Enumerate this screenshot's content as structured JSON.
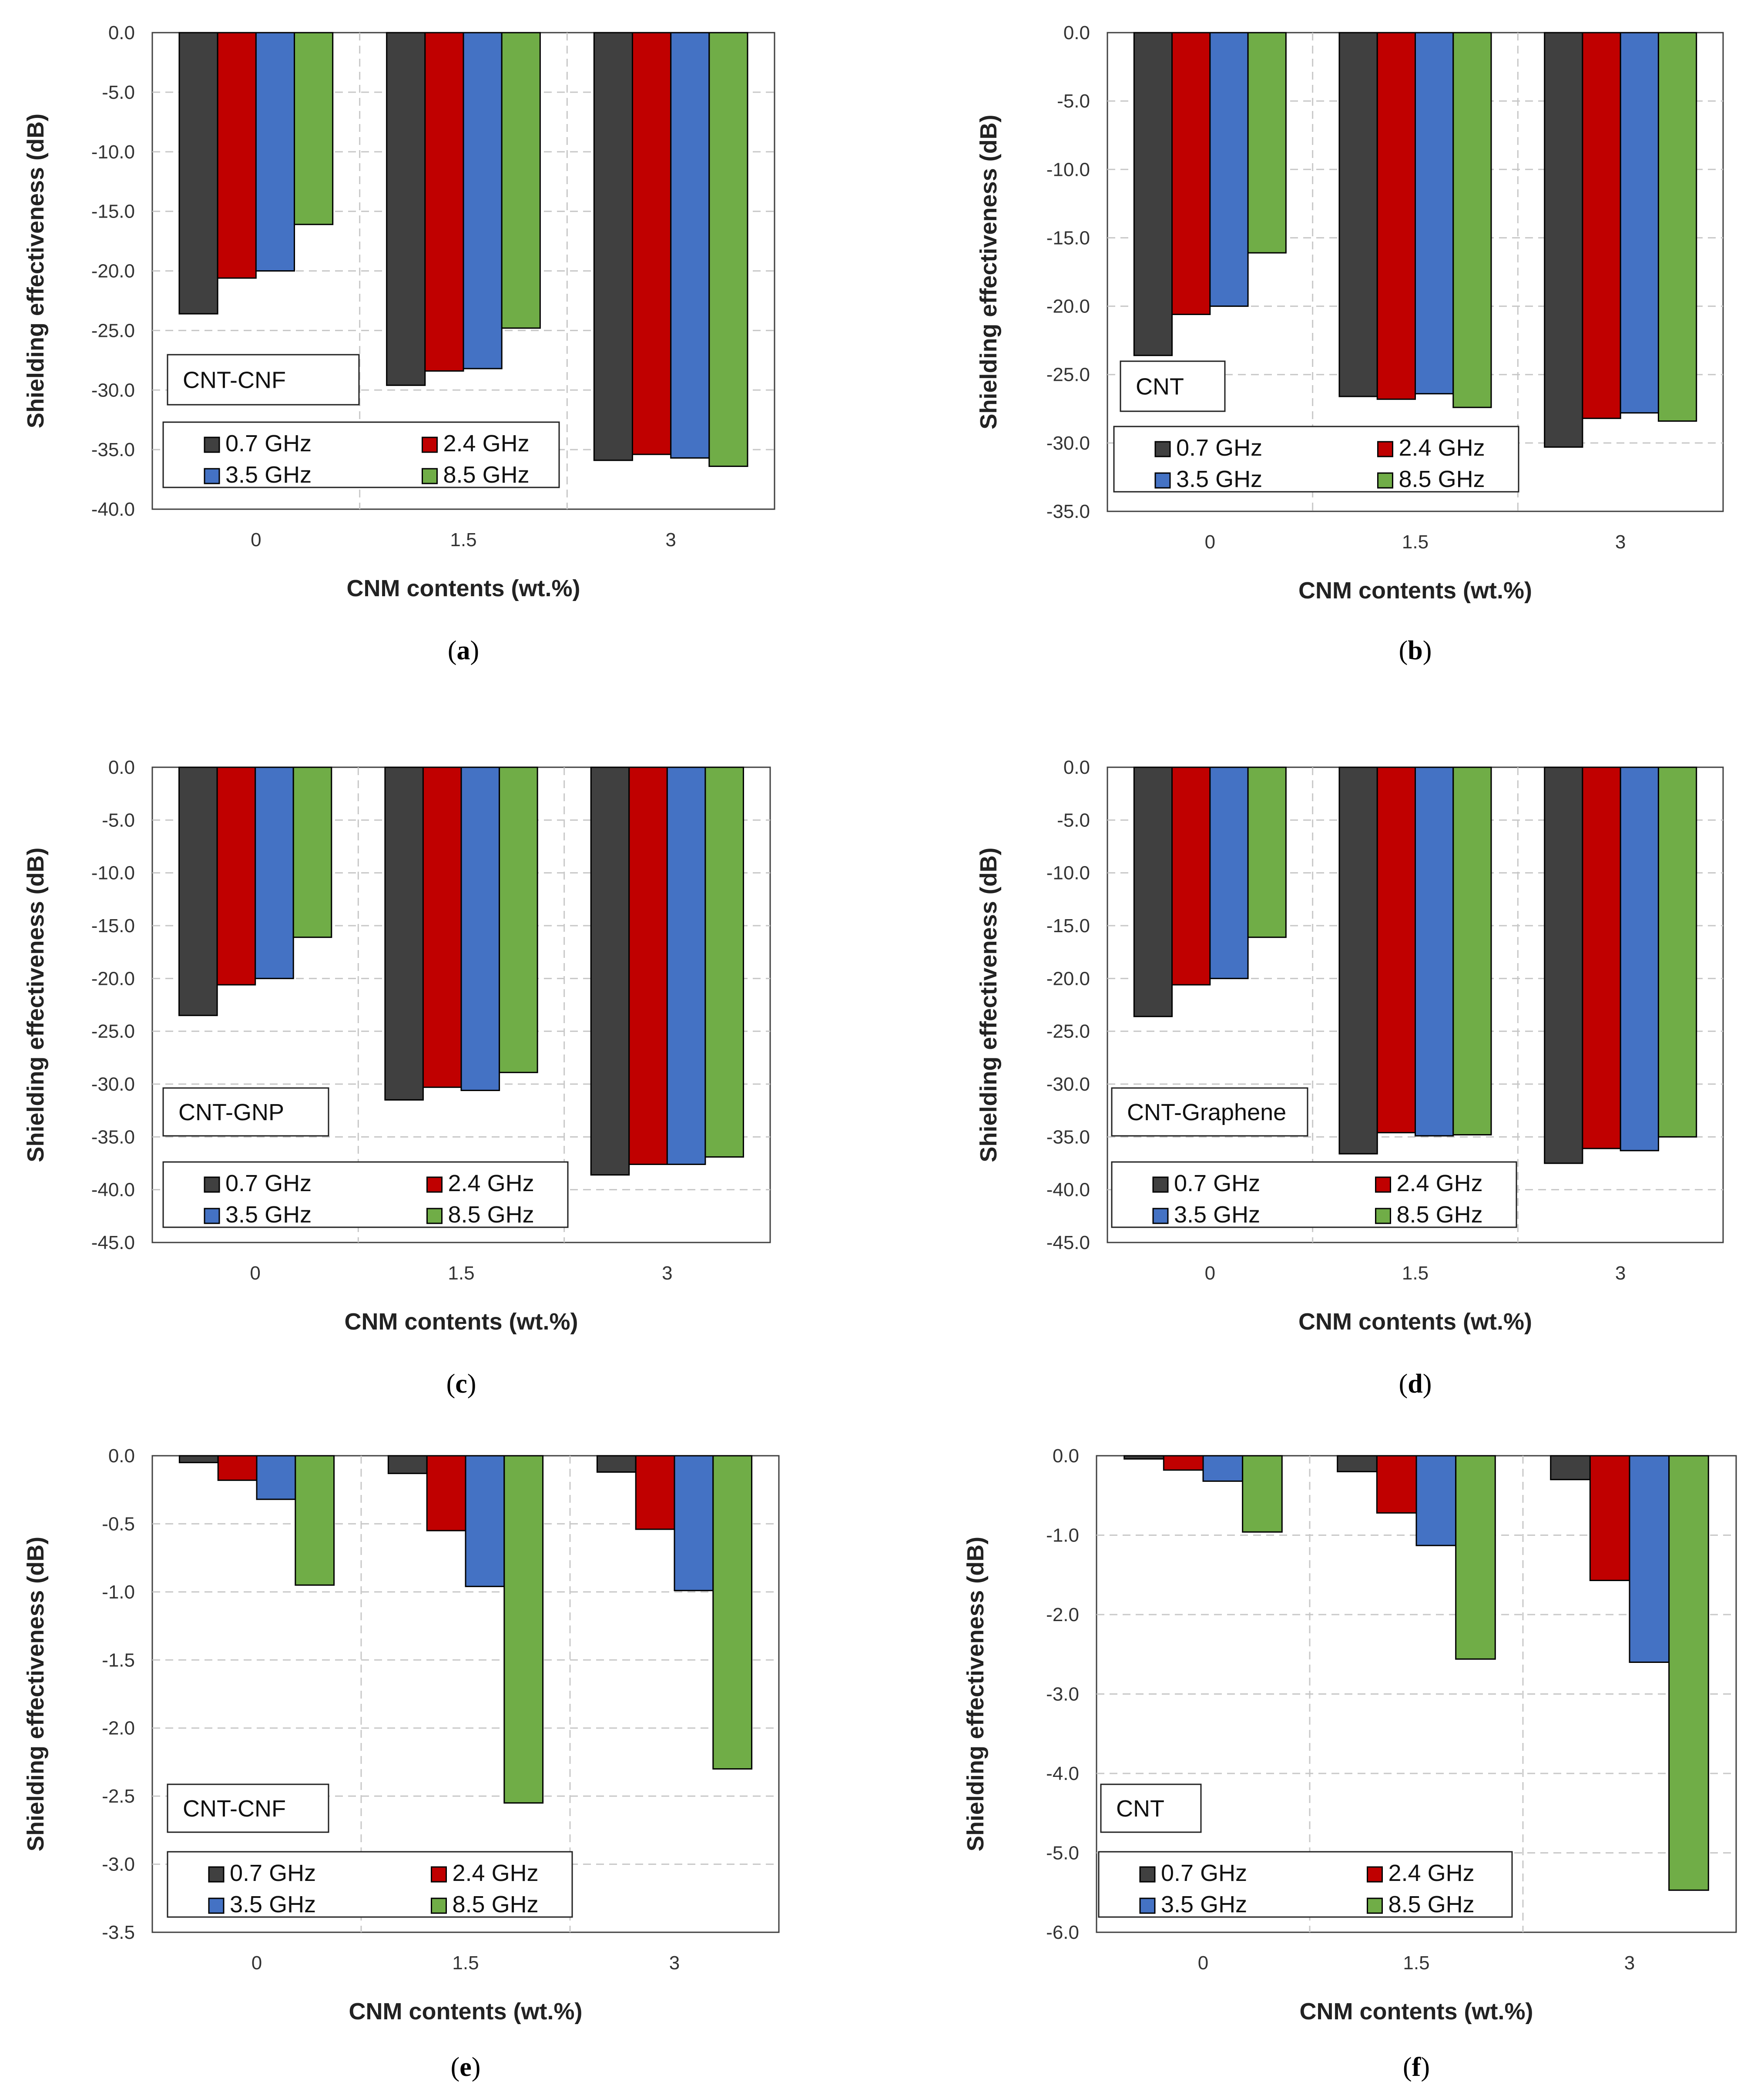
{
  "figure": {
    "x_label": "CNM contents (wt.%)",
    "y_label": "Shielding effectiveness (dB)",
    "series_names": [
      "0.7 GHz",
      "2.4 GHz",
      "3.5 GHz",
      "8.5 GHz"
    ],
    "series_colors": [
      "#404040",
      "#c00000",
      "#4472c4",
      "#70ad47"
    ]
  },
  "chart_data": [
    {
      "type": "bar",
      "caption_letter": "a",
      "inset_label": "CNT-CNF",
      "categories": [
        "0",
        "1.5",
        "3"
      ],
      "xlabel": "CNM contents (wt.%)",
      "ylabel": "Shielding effectiveness (dB)",
      "ylim": [
        -40,
        0
      ],
      "ytick_step": 5,
      "ytick_decimals": 1,
      "grid": true,
      "legend_position": "bottom-left",
      "series": [
        {
          "name": "0.7 GHz",
          "values": [
            -23.6,
            -29.6,
            -35.9
          ]
        },
        {
          "name": "2.4 GHz",
          "values": [
            -20.6,
            -28.4,
            -35.4
          ]
        },
        {
          "name": "3.5 GHz",
          "values": [
            -20.0,
            -28.2,
            -35.7
          ]
        },
        {
          "name": "8.5 GHz",
          "values": [
            -16.1,
            -24.8,
            -36.4
          ]
        }
      ]
    },
    {
      "type": "bar",
      "caption_letter": "b",
      "inset_label": "CNT",
      "categories": [
        "0",
        "1.5",
        "3"
      ],
      "xlabel": "CNM contents (wt.%)",
      "ylabel": "Shielding effectiveness (dB)",
      "ylim": [
        -35,
        0
      ],
      "ytick_step": 5,
      "ytick_decimals": 1,
      "grid": true,
      "legend_position": "bottom-left",
      "series": [
        {
          "name": "0.7 GHz",
          "values": [
            -23.6,
            -26.6,
            -30.3
          ]
        },
        {
          "name": "2.4 GHz",
          "values": [
            -20.6,
            -26.8,
            -28.2
          ]
        },
        {
          "name": "3.5 GHz",
          "values": [
            -20.0,
            -26.4,
            -27.8
          ]
        },
        {
          "name": "8.5 GHz",
          "values": [
            -16.1,
            -27.4,
            -28.4
          ]
        }
      ]
    },
    {
      "type": "bar",
      "caption_letter": "c",
      "inset_label": "CNT-GNP",
      "categories": [
        "0",
        "1.5",
        "3"
      ],
      "xlabel": "CNM contents (wt.%)",
      "ylabel": "Shielding effectiveness (dB)",
      "ylim": [
        -45,
        0
      ],
      "ytick_step": 5,
      "ytick_decimals": 1,
      "grid": true,
      "legend_position": "bottom-left",
      "series": [
        {
          "name": "0.7 GHz",
          "values": [
            -23.5,
            -31.5,
            -38.6
          ]
        },
        {
          "name": "2.4 GHz",
          "values": [
            -20.6,
            -30.3,
            -37.6
          ]
        },
        {
          "name": "3.5 GHz",
          "values": [
            -20.0,
            -30.6,
            -37.6
          ]
        },
        {
          "name": "8.5 GHz",
          "values": [
            -16.1,
            -28.9,
            -36.9
          ]
        }
      ]
    },
    {
      "type": "bar",
      "caption_letter": "d",
      "inset_label": "CNT-Graphene",
      "categories": [
        "0",
        "1.5",
        "3"
      ],
      "xlabel": "CNM contents (wt.%)",
      "ylabel": "Shielding effectiveness (dB)",
      "ylim": [
        -45,
        0
      ],
      "ytick_step": 5,
      "ytick_decimals": 1,
      "grid": true,
      "legend_position": "bottom-left",
      "series": [
        {
          "name": "0.7 GHz",
          "values": [
            -23.6,
            -36.6,
            -37.5
          ]
        },
        {
          "name": "2.4 GHz",
          "values": [
            -20.6,
            -34.6,
            -36.1
          ]
        },
        {
          "name": "3.5 GHz",
          "values": [
            -20.0,
            -34.9,
            -36.3
          ]
        },
        {
          "name": "8.5 GHz",
          "values": [
            -16.1,
            -34.8,
            -35.0
          ]
        }
      ]
    },
    {
      "type": "bar",
      "caption_letter": "e",
      "inset_label": "CNT-CNF",
      "categories": [
        "0",
        "1.5",
        "3"
      ],
      "xlabel": "CNM contents (wt.%)",
      "ylabel": "Shielding effectiveness (dB)",
      "ylim": [
        -3.5,
        0
      ],
      "ytick_step": 0.5,
      "ytick_decimals": 1,
      "grid": true,
      "legend_position": "bottom-left",
      "series": [
        {
          "name": "0.7 GHz",
          "values": [
            -0.05,
            -0.13,
            -0.12
          ]
        },
        {
          "name": "2.4 GHz",
          "values": [
            -0.18,
            -0.55,
            -0.54
          ]
        },
        {
          "name": "3.5 GHz",
          "values": [
            -0.32,
            -0.96,
            -0.99
          ]
        },
        {
          "name": "8.5 GHz",
          "values": [
            -0.95,
            -2.55,
            -2.3
          ]
        }
      ]
    },
    {
      "type": "bar",
      "caption_letter": "f",
      "inset_label": "CNT",
      "categories": [
        "0",
        "1.5",
        "3"
      ],
      "xlabel": "CNM contents (wt.%)",
      "ylabel": "Shielding effectiveness (dB)",
      "ylim": [
        -6,
        0
      ],
      "ytick_step": 1,
      "ytick_decimals": 1,
      "grid": true,
      "legend_position": "bottom-left",
      "series": [
        {
          "name": "0.7 GHz",
          "values": [
            -0.04,
            -0.2,
            -0.3
          ]
        },
        {
          "name": "2.4 GHz",
          "values": [
            -0.18,
            -0.72,
            -1.57
          ]
        },
        {
          "name": "3.5 GHz",
          "values": [
            -0.32,
            -1.13,
            -2.6
          ]
        },
        {
          "name": "8.5 GHz",
          "values": [
            -0.96,
            -2.56,
            -5.47
          ]
        }
      ]
    }
  ]
}
